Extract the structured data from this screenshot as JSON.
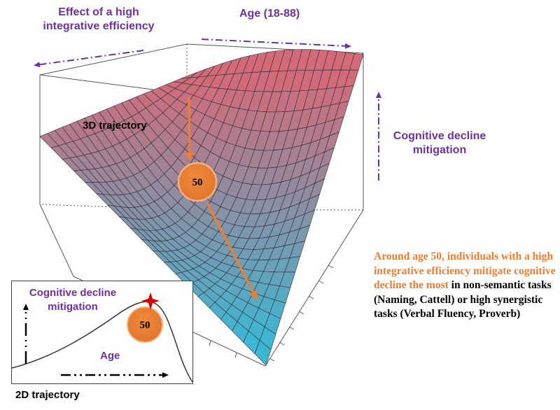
{
  "labels": {
    "effect_axis": "Effect of a high integrative efficiency",
    "age_axis": "Age (18-88)",
    "cognitive_axis": "Cognitive decline mitigation",
    "trajectory_3d": "3D trajectory",
    "trajectory_2d": "2D trajectory"
  },
  "marker": {
    "age": "50"
  },
  "annotation": {
    "highlight": "Around age 50, individuals with a high integrative efficiency mitigate cognitive decline the most",
    "rest": " in non-semantic tasks (Naming, Cattell) or high synergistic tasks (Verbal Fluency, Proverb)"
  },
  "inset": {
    "ylabel": "Cognitive decline mitigation",
    "xlabel": "Age",
    "marker": "50"
  },
  "colors": {
    "purple": "#7030a0",
    "orange": "#ed7d31",
    "surface_high": "#d46a77",
    "surface_low": "#3cb7d3",
    "star": "#d40000"
  }
}
